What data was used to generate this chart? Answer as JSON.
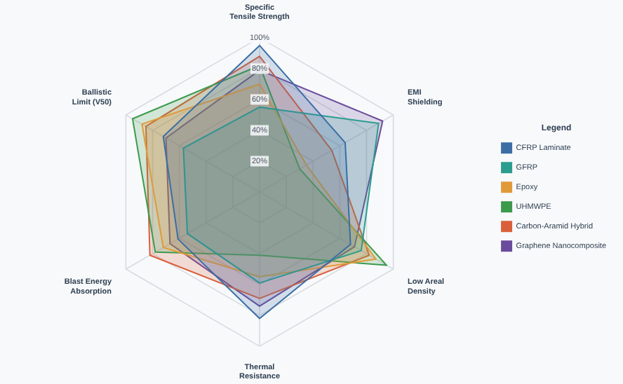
{
  "chart_data": {
    "type": "radar",
    "categories": [
      "Specific Tensile Strength",
      "EMI Shielding",
      "Low Areal Density",
      "Thermal Resistance",
      "Blast Energy Absorption",
      "Ballistic Limit (V50)"
    ],
    "ylim": [
      0,
      100
    ],
    "yticks": [
      {
        "value": 20,
        "label": "20%"
      },
      {
        "value": 40,
        "label": "40%"
      },
      {
        "value": 60,
        "label": "60%"
      },
      {
        "value": 80,
        "label": "80%"
      },
      {
        "value": 100,
        "label": "100%"
      }
    ],
    "grid": true,
    "legend": "right",
    "legend_title": "Legend",
    "marker": "none",
    "series": [
      {
        "name": "CFRP Laminate",
        "color": "#3a6ea5",
        "values": [
          95,
          64,
          68,
          82,
          61,
          72
        ]
      },
      {
        "name": "GFRP",
        "color": "#2a9d8f",
        "values": [
          55,
          89,
          76,
          59,
          54,
          57
        ]
      },
      {
        "name": "Epoxy",
        "color": "#e09a3a",
        "values": [
          70,
          35,
          87,
          55,
          72,
          88
        ]
      },
      {
        "name": "UHMWPE",
        "color": "#3c9a4c",
        "values": [
          82,
          30,
          95,
          41,
          78,
          95
        ]
      },
      {
        "name": "Carbon-Aramid Hybrid",
        "color": "#d9603b",
        "values": [
          88,
          54,
          82,
          69,
          82,
          85
        ]
      },
      {
        "name": "Graphene Nanocomposite",
        "color": "#6a4c9c",
        "values": [
          79,
          92,
          71,
          74,
          67,
          70
        ]
      }
    ]
  }
}
